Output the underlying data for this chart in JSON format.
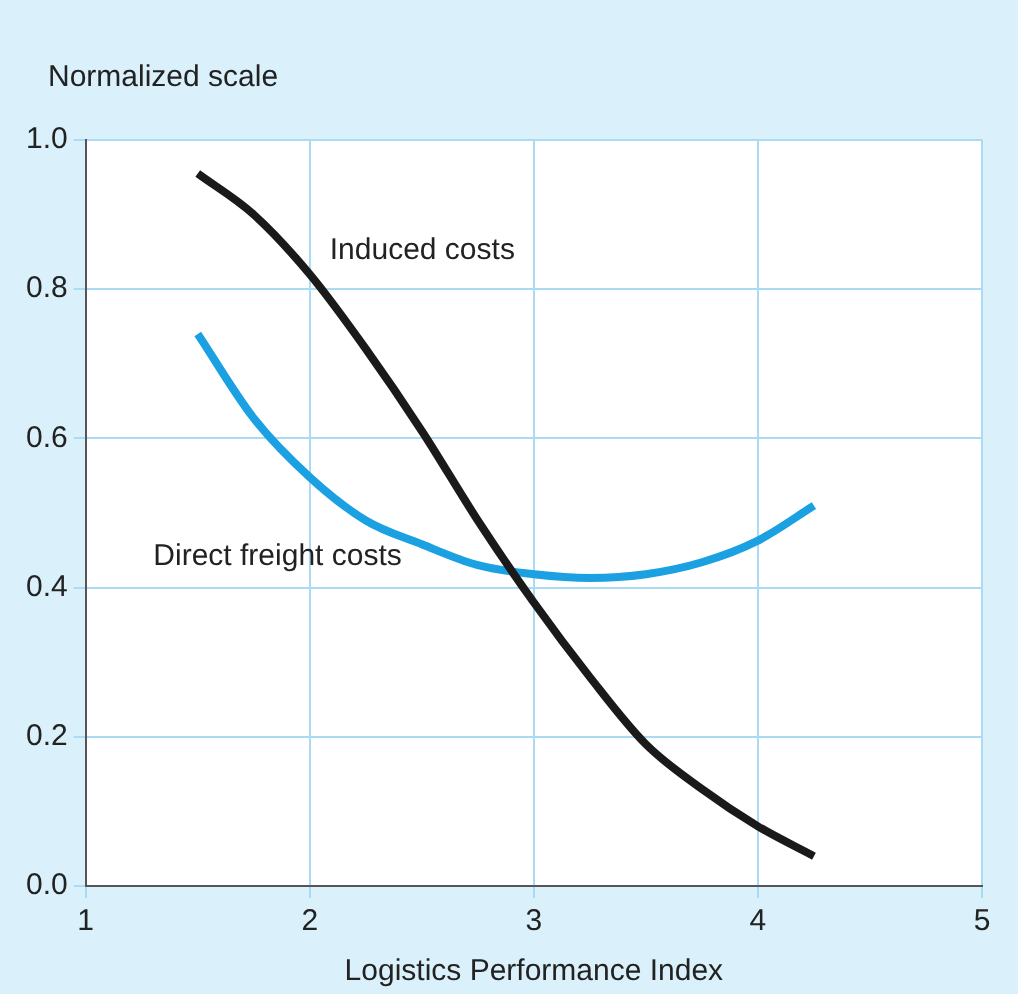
{
  "chart_data": {
    "type": "line",
    "ylabel": "Normalized scale",
    "xlabel": "Logistics Performance Index",
    "xlim": [
      1,
      5
    ],
    "xticks": [
      1,
      2,
      3,
      4,
      5
    ],
    "ylim": [
      0,
      1
    ],
    "yticks": [
      {
        "value": 0,
        "label": "0.0"
      },
      {
        "value": 0.2,
        "label": "0.2"
      },
      {
        "value": 0.4,
        "label": "0.4"
      },
      {
        "value": 0.6,
        "label": "0.6"
      },
      {
        "value": 0.8,
        "label": "0.8"
      },
      {
        "value": 1,
        "label": "1.0"
      }
    ],
    "grid": true,
    "legend": false,
    "marker": "none",
    "line_style": "solid",
    "x": [
      1.5,
      1.75,
      2,
      2.25,
      2.5,
      2.75,
      3,
      3.25,
      3.5,
      3.75,
      4,
      4.25
    ],
    "series": [
      {
        "name": "Induced costs",
        "color": "#1a1a1a",
        "values": [
          0.955,
          0.9,
          0.82,
          0.72,
          0.61,
          0.49,
          0.38,
          0.28,
          0.19,
          0.13,
          0.08,
          0.04
        ]
      },
      {
        "name": "Direct freight costs",
        "color": "#1ba1e2",
        "values": [
          0.74,
          0.627,
          0.548,
          0.49,
          0.458,
          0.43,
          0.418,
          0.413,
          0.418,
          0.434,
          0.463,
          0.51
        ]
      }
    ]
  }
}
